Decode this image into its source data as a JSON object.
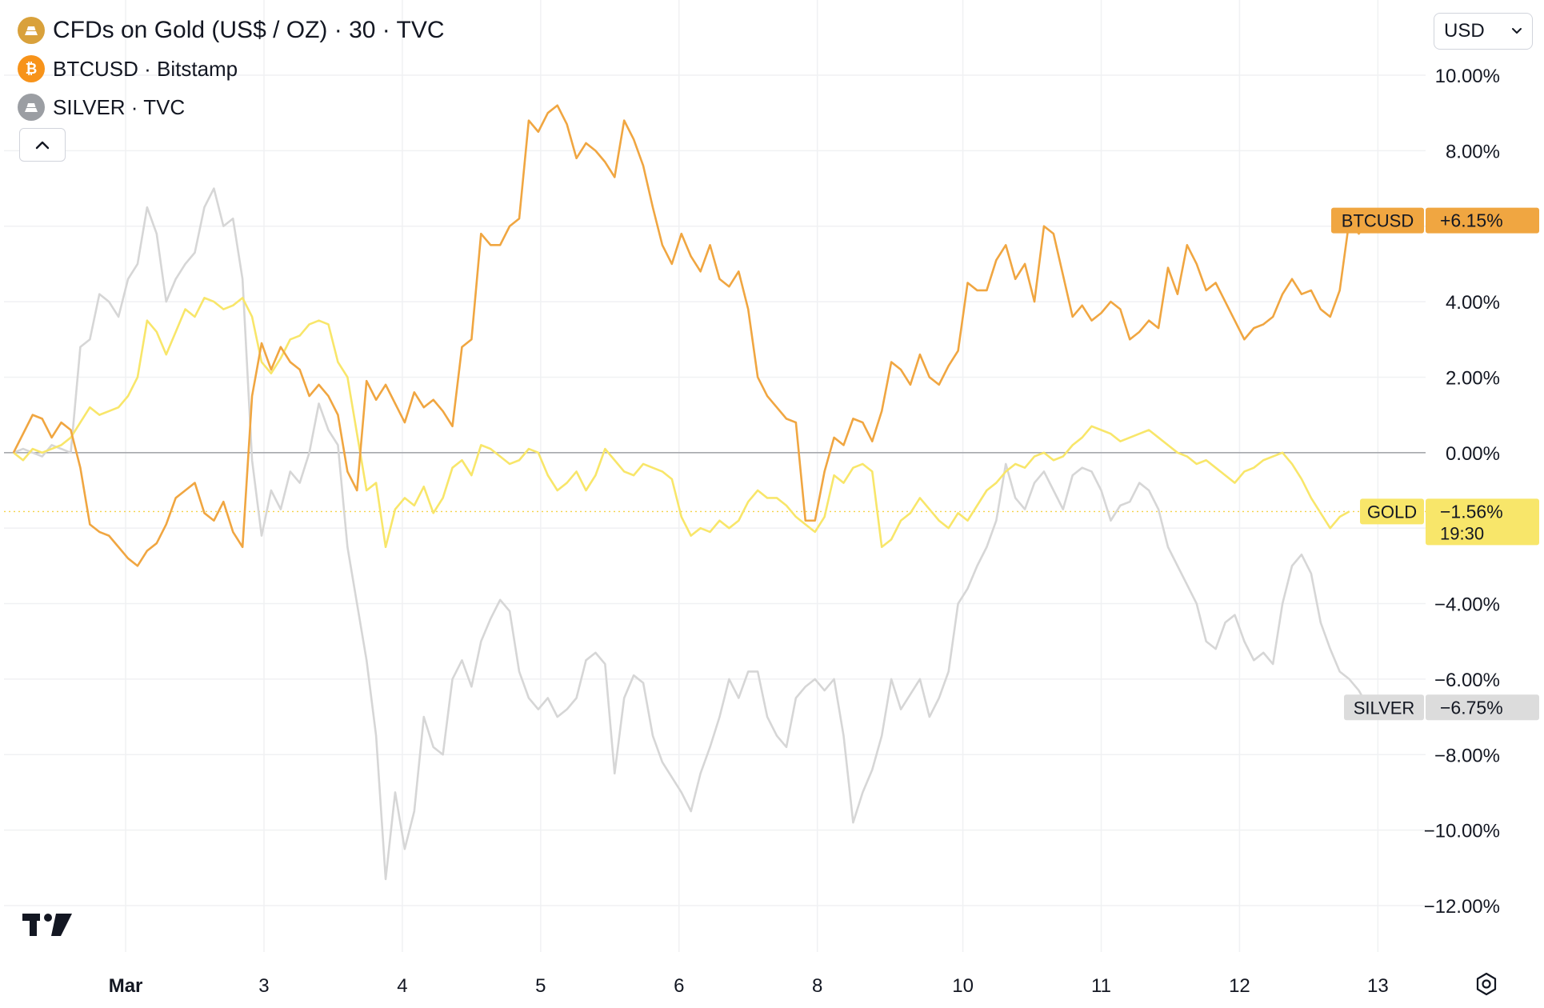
{
  "legend": {
    "items": [
      {
        "label": "CFDs on Gold (US$ / OZ) · 30 · TVC",
        "icon": "gold-bar-icon",
        "color": "#d9a13b"
      },
      {
        "label": "BTCUSD · Bitstamp",
        "icon": "bitcoin-icon",
        "color": "#f7931a"
      },
      {
        "label": "SILVER · TVC",
        "icon": "silver-bar-icon",
        "color": "#9b9ea3"
      }
    ],
    "collapse_icon": "chevron-up-icon"
  },
  "currency": {
    "value": "USD"
  },
  "settings_icon": "gear-icon",
  "logo": "tradingview-logo",
  "chart_data": {
    "type": "line",
    "y_unit": "%",
    "ylim": [
      -12,
      10
    ],
    "y_ticks": [
      "10.00%",
      "8.00%",
      "6.00%",
      "4.00%",
      "2.00%",
      "0.00%",
      "−4.00%",
      "−6.00%",
      "−8.00%",
      "−10.00%",
      "−12.00%"
    ],
    "y_tick_values": [
      10,
      8,
      6,
      4,
      2,
      0,
      -4,
      -6,
      -8,
      -10,
      -12
    ],
    "x_ticks": [
      "Mar",
      "3",
      "4",
      "5",
      "6",
      "8",
      "10",
      "11",
      "12",
      "13"
    ],
    "x_tick_index": [
      2.35,
      5.25,
      8.15,
      11.05,
      13.95,
      16.85,
      19.9,
      22.8,
      25.7,
      28.6
    ],
    "x_range": [
      -0.2,
      29.6
    ],
    "grid": true,
    "zero_line": true,
    "series": [
      {
        "name": "BTCUSD",
        "color": "#f0a641",
        "last_label": "+6.15%",
        "values": [
          0,
          0.5,
          1.0,
          0.9,
          0.4,
          0.8,
          0.6,
          -0.4,
          -1.9,
          -2.1,
          -2.2,
          -2.5,
          -2.8,
          -3.0,
          -2.6,
          -2.4,
          -1.9,
          -1.2,
          -1.0,
          -0.8,
          -1.6,
          -1.8,
          -1.3,
          -2.1,
          -2.5,
          1.5,
          2.9,
          2.2,
          2.8,
          2.4,
          2.2,
          1.5,
          1.8,
          1.5,
          1.0,
          -0.5,
          -1.0,
          1.9,
          1.4,
          1.8,
          1.3,
          0.8,
          1.6,
          1.2,
          1.4,
          1.1,
          0.7,
          2.8,
          3.0,
          5.8,
          5.5,
          5.5,
          6.0,
          6.2,
          8.8,
          8.5,
          9.0,
          9.2,
          8.7,
          7.8,
          8.2,
          8.0,
          7.7,
          7.3,
          8.8,
          8.3,
          7.6,
          6.5,
          5.5,
          5.0,
          5.8,
          5.2,
          4.8,
          5.5,
          4.6,
          4.4,
          4.8,
          3.8,
          2.0,
          1.5,
          1.2,
          0.9,
          0.8,
          -1.8,
          -1.8,
          -0.5,
          0.4,
          0.2,
          0.9,
          0.8,
          0.3,
          1.1,
          2.4,
          2.2,
          1.8,
          2.6,
          2.0,
          1.8,
          2.3,
          2.7,
          4.5,
          4.3,
          4.3,
          5.1,
          5.5,
          4.6,
          5.0,
          4.0,
          6.0,
          5.8,
          4.7,
          3.6,
          3.9,
          3.5,
          3.7,
          4.0,
          3.8,
          3.0,
          3.2,
          3.5,
          3.3,
          4.9,
          4.2,
          5.5,
          5.0,
          4.3,
          4.5,
          4.0,
          3.5,
          3.0,
          3.3,
          3.4,
          3.6,
          4.2,
          4.6,
          4.2,
          4.3,
          3.8,
          3.6,
          4.3,
          6.15,
          5.8,
          6.15
        ]
      },
      {
        "name": "GOLD",
        "color": "#f8e66a",
        "last_label": "−1.56%",
        "time_label": "19:30",
        "values": [
          0,
          -0.2,
          0.1,
          0.0,
          0.1,
          0.2,
          0.4,
          0.8,
          1.2,
          1.0,
          1.1,
          1.2,
          1.5,
          2.0,
          3.5,
          3.2,
          2.6,
          3.2,
          3.8,
          3.6,
          4.1,
          4.0,
          3.8,
          3.9,
          4.1,
          3.6,
          2.4,
          2.1,
          2.5,
          3.0,
          3.1,
          3.4,
          3.5,
          3.4,
          2.4,
          2.0,
          0.5,
          -1.0,
          -0.8,
          -2.5,
          -1.5,
          -1.2,
          -1.4,
          -0.9,
          -1.6,
          -1.2,
          -0.4,
          -0.2,
          -0.6,
          0.2,
          0.1,
          -0.1,
          -0.3,
          -0.2,
          0.1,
          0.0,
          -0.6,
          -1.0,
          -0.8,
          -0.5,
          -1.0,
          -0.6,
          0.1,
          -0.2,
          -0.5,
          -0.6,
          -0.3,
          -0.4,
          -0.5,
          -0.7,
          -1.7,
          -2.2,
          -2.0,
          -2.1,
          -1.8,
          -2.0,
          -1.8,
          -1.3,
          -1.0,
          -1.2,
          -1.2,
          -1.4,
          -1.7,
          -1.9,
          -2.1,
          -1.7,
          -0.6,
          -0.8,
          -0.4,
          -0.3,
          -0.5,
          -2.5,
          -2.3,
          -1.8,
          -1.6,
          -1.2,
          -1.5,
          -1.8,
          -2.0,
          -1.6,
          -1.8,
          -1.4,
          -1.0,
          -0.8,
          -0.5,
          -0.3,
          -0.4,
          -0.1,
          0.0,
          -0.2,
          -0.1,
          0.2,
          0.4,
          0.7,
          0.6,
          0.5,
          0.3,
          0.4,
          0.5,
          0.6,
          0.4,
          0.2,
          0.0,
          -0.1,
          -0.3,
          -0.2,
          -0.4,
          -0.6,
          -0.8,
          -0.5,
          -0.4,
          -0.2,
          -0.1,
          0.0,
          -0.3,
          -0.7,
          -1.2,
          -1.6,
          -2.0,
          -1.7,
          -1.56
        ]
      },
      {
        "name": "SILVER",
        "color": "#d6d6d6",
        "last_label": "−6.75%",
        "values": [
          0,
          0.1,
          0.0,
          -0.1,
          0.2,
          0.1,
          0.0,
          2.8,
          3.0,
          4.2,
          4.0,
          3.6,
          4.6,
          5.0,
          6.5,
          5.8,
          4.0,
          4.6,
          5.0,
          5.3,
          6.5,
          7.0,
          6.0,
          6.2,
          4.6,
          -0.2,
          -2.2,
          -1.0,
          -1.5,
          -0.5,
          -0.8,
          0.0,
          1.3,
          0.6,
          0.2,
          -2.5,
          -4.0,
          -5.5,
          -7.5,
          -11.3,
          -9.0,
          -10.5,
          -9.5,
          -7.0,
          -7.8,
          -8.0,
          -6.0,
          -5.5,
          -6.2,
          -5.0,
          -4.4,
          -3.9,
          -4.2,
          -5.8,
          -6.5,
          -6.8,
          -6.5,
          -7.0,
          -6.8,
          -6.5,
          -5.5,
          -5.3,
          -5.6,
          -8.5,
          -6.5,
          -5.9,
          -6.1,
          -7.5,
          -8.2,
          -8.6,
          -9.0,
          -9.5,
          -8.5,
          -7.8,
          -7.0,
          -6.0,
          -6.5,
          -5.8,
          -5.8,
          -7.0,
          -7.5,
          -7.8,
          -6.5,
          -6.2,
          -6.0,
          -6.3,
          -6.0,
          -7.5,
          -9.8,
          -9.0,
          -8.4,
          -7.5,
          -6.0,
          -6.8,
          -6.4,
          -6.0,
          -7.0,
          -6.5,
          -5.8,
          -4.0,
          -3.6,
          -3.0,
          -2.5,
          -1.8,
          -0.3,
          -1.2,
          -1.5,
          -0.8,
          -0.5,
          -1.0,
          -1.5,
          -0.6,
          -0.4,
          -0.5,
          -1.0,
          -1.8,
          -1.4,
          -1.3,
          -0.8,
          -1.0,
          -1.5,
          -2.5,
          -3.0,
          -3.5,
          -4.0,
          -5.0,
          -5.2,
          -4.5,
          -4.3,
          -5.0,
          -5.5,
          -5.3,
          -5.6,
          -4.0,
          -3.0,
          -2.7,
          -3.2,
          -4.5,
          -5.2,
          -5.8,
          -6.0,
          -6.3,
          -6.75
        ]
      }
    ]
  }
}
